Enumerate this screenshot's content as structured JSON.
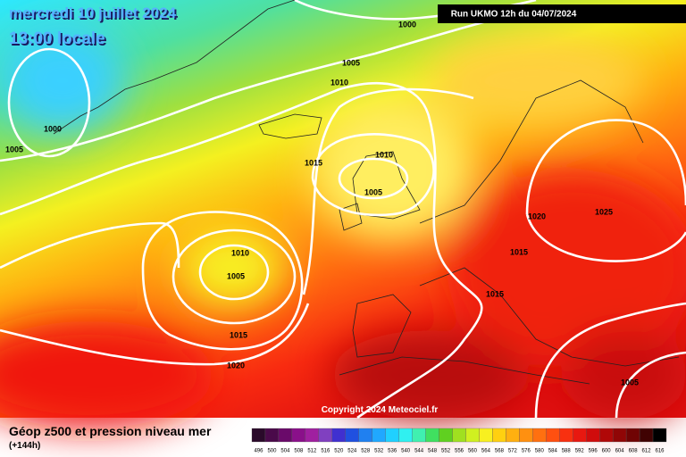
{
  "header": {
    "date": "mercredi 10 juillet 2024",
    "time": "13:00 locale",
    "run": "Run UKMO 12h du 04/07/2024"
  },
  "isobar_labels": [
    1000,
    1005,
    1010,
    1000,
    1005,
    1015,
    1010,
    1005,
    1020,
    1025,
    1010,
    1005,
    1015,
    1015,
    1015,
    1020,
    1005
  ],
  "copyright": "Copyright 2024 Meteociel.fr",
  "legend": {
    "title": "Géop z500 et pression niveau mer",
    "subtitle": "(+144h)",
    "scale": [
      496,
      500,
      504,
      508,
      512,
      516,
      520,
      524,
      528,
      532,
      536,
      540,
      544,
      548,
      552,
      556,
      560,
      564,
      568,
      572,
      576,
      580,
      584,
      588,
      592,
      596,
      600,
      604,
      608,
      612,
      616
    ]
  }
}
